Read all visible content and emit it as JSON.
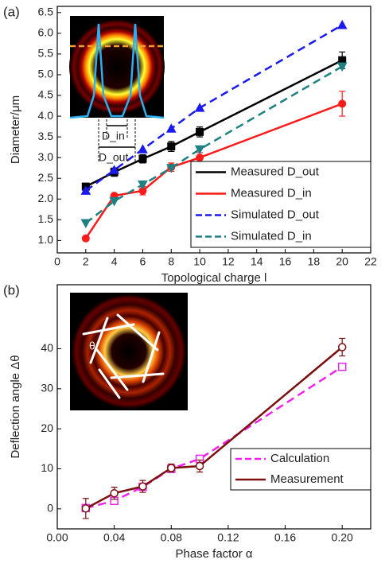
{
  "chart_data": [
    {
      "type": "line",
      "panel_label": "(a)",
      "xlabel": "Topological charge l",
      "ylabel": "Diameter/μm",
      "xlim": [
        0,
        22
      ],
      "xticks": [
        0,
        2,
        4,
        6,
        8,
        10,
        12,
        14,
        16,
        18,
        20,
        22
      ],
      "ylim": [
        0.7,
        6.65
      ],
      "yticks": [
        {
          "value": 1,
          "label": "1.0"
        },
        1.5,
        {
          "value": 2,
          "label": "2.0"
        },
        2.5,
        {
          "value": 3,
          "label": "3.0"
        },
        3.5,
        {
          "value": 4,
          "label": "4.0"
        },
        4.5,
        {
          "value": 5,
          "label": "5.0"
        },
        5.5,
        {
          "value": 6,
          "label": "6.0"
        },
        6.5
      ],
      "legend": "lower right",
      "x": [
        2,
        4,
        6,
        8,
        10,
        20
      ],
      "series": [
        {
          "name": "Measured D_out",
          "color": "#000000",
          "marker": "square",
          "dash": false,
          "values": [
            2.3,
            2.65,
            2.97,
            3.27,
            3.62,
            5.35
          ],
          "errors": [
            0.08,
            0.1,
            0.1,
            0.12,
            0.12,
            0.2
          ]
        },
        {
          "name": "Measured D_in",
          "color": "#ff1a1a",
          "marker": "circle",
          "dash": false,
          "values": [
            1.05,
            2.08,
            2.2,
            2.77,
            3.0,
            4.3
          ],
          "errors": [
            0.05,
            0.05,
            0.1,
            0.1,
            0.12,
            0.3
          ]
        },
        {
          "name": "Simulated D_out",
          "color": "#1a1aee",
          "marker": "triangle",
          "dash": true,
          "values": [
            2.2,
            2.7,
            3.2,
            3.7,
            4.2,
            6.2
          ]
        },
        {
          "name": "Simulated D_in",
          "color": "#1e8080",
          "marker": "triangle-down",
          "dash": true,
          "values": [
            1.42,
            1.95,
            2.35,
            2.75,
            3.2,
            5.2
          ]
        }
      ],
      "annotations": [
        "D_in",
        "D_out"
      ]
    },
    {
      "type": "line",
      "panel_label": "(b)",
      "xlabel": "Phase factor α",
      "ylabel": "Deflection angle Δθ",
      "xlim": [
        0,
        0.22
      ],
      "xticks": [
        {
          "value": 0,
          "label": "0.00"
        },
        0.04,
        0.08,
        0.12,
        0.16,
        {
          "value": 0.2,
          "label": "0.20"
        }
      ],
      "ylim": [
        -5,
        56
      ],
      "yticks": [
        0,
        10,
        20,
        30,
        40
      ],
      "legend": "lower right",
      "x": [
        0.02,
        0.04,
        0.06,
        0.08,
        0.1,
        0.2
      ],
      "series": [
        {
          "name": "Calculation",
          "color": "#ee22ee",
          "marker": "open-square",
          "dash": true,
          "values": [
            0.2,
            2.0,
            5.5,
            10.0,
            12.5,
            35.5
          ]
        },
        {
          "name": "Measurement",
          "color": "#7a1010",
          "marker": "open-circle",
          "dash": false,
          "values": [
            0.1,
            3.9,
            5.6,
            10.2,
            10.7,
            40.4
          ],
          "errors": [
            2.5,
            1.5,
            1.5,
            1.0,
            1.5,
            2.2
          ]
        }
      ],
      "annotations": [
        "θ"
      ]
    }
  ]
}
